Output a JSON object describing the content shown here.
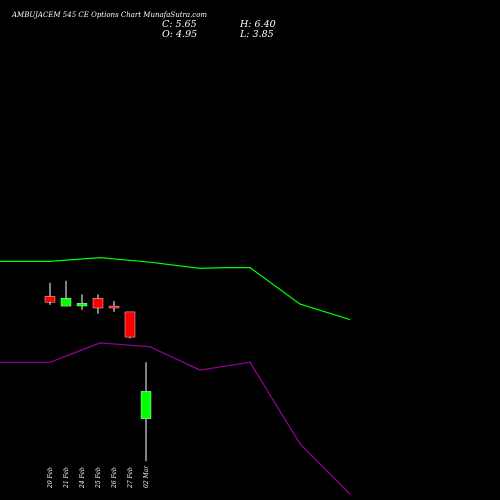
{
  "title": "AMBUJACEM 545 CE Options Chart MunafaSutra.com",
  "ohlc": {
    "close": "C: 5.65",
    "open": "O: 4.95",
    "high": "H: 6.40",
    "low": "L: 3.85"
  },
  "colors": {
    "background": "#000000",
    "up": "#00ff00",
    "down": "#ff0000",
    "wick": "#ffffff",
    "upper_band": "#00ff00",
    "lower_band": "#9a009a"
  },
  "chart_data": {
    "type": "candlestick",
    "categories": [
      "20 Feb",
      "21 Feb",
      "24 Feb",
      "25 Feb",
      "26 Feb",
      "27 Feb",
      "02 Mar"
    ],
    "candles": [
      {
        "date": "20 Feb",
        "open": 8.1,
        "high": 8.45,
        "low": 7.88,
        "close": 7.95
      },
      {
        "date": "21 Feb",
        "open": 7.85,
        "high": 8.5,
        "low": 7.85,
        "close": 8.05
      },
      {
        "date": "24 Feb",
        "open": 7.85,
        "high": 8.15,
        "low": 7.75,
        "close": 7.92
      },
      {
        "date": "25 Feb",
        "open": 8.05,
        "high": 8.15,
        "low": 7.65,
        "close": 7.8
      },
      {
        "date": "26 Feb",
        "open": 7.85,
        "high": 7.98,
        "low": 7.7,
        "close": 7.8
      },
      {
        "date": "27 Feb",
        "open": 7.7,
        "high": 7.7,
        "low": 7.02,
        "close": 7.05
      },
      {
        "date": "02 Mar",
        "open": 4.95,
        "high": 6.4,
        "low": 3.85,
        "close": 5.65
      }
    ],
    "upper_band": [
      {
        "x": 0,
        "y": 9.0
      },
      {
        "x": 50,
        "y": 9.0
      },
      {
        "x": 100,
        "y": 9.1
      },
      {
        "x": 150,
        "y": 8.98
      },
      {
        "x": 200,
        "y": 8.82
      },
      {
        "x": 225,
        "y": 8.84
      },
      {
        "x": 250,
        "y": 8.84
      },
      {
        "x": 300,
        "y": 7.9
      },
      {
        "x": 350,
        "y": 7.5
      }
    ],
    "lower_band": [
      {
        "x": 0,
        "y": 6.4
      },
      {
        "x": 50,
        "y": 6.4
      },
      {
        "x": 100,
        "y": 6.9
      },
      {
        "x": 150,
        "y": 6.8
      },
      {
        "x": 200,
        "y": 6.2
      },
      {
        "x": 225,
        "y": 6.3
      },
      {
        "x": 250,
        "y": 6.4
      },
      {
        "x": 300,
        "y": 4.3
      },
      {
        "x": 350,
        "y": 3.0
      }
    ]
  }
}
